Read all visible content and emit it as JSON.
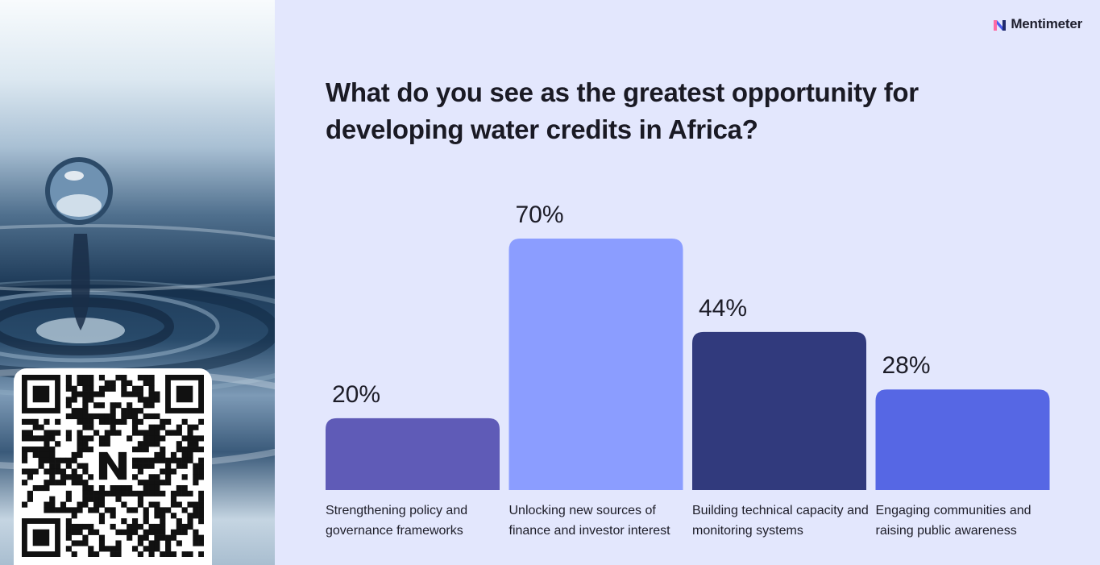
{
  "brand": {
    "name": "Mentimeter",
    "icon": "mentimeter-logo-icon"
  },
  "question": "What do you see as the greatest opportunity for developing water credits in Africa?",
  "colors": {
    "background": "#e3e7fd"
  },
  "chart_data": {
    "type": "bar",
    "title": "What do you see as the greatest opportunity for developing water credits in Africa?",
    "categories": [
      "Strengthening policy and governance frameworks",
      "Unlocking new sources of finance and investor interest",
      "Building technical capacity and monitoring systems",
      "Engaging communities and raising public awareness"
    ],
    "values": [
      20,
      70,
      44,
      28
    ],
    "value_labels": [
      "20%",
      "70%",
      "44%",
      "28%"
    ],
    "colors": [
      "#5f5bb7",
      "#8b9dff",
      "#313a7d",
      "#5667e4"
    ],
    "ylim": [
      0,
      70
    ],
    "grid": false,
    "legend": "none"
  }
}
